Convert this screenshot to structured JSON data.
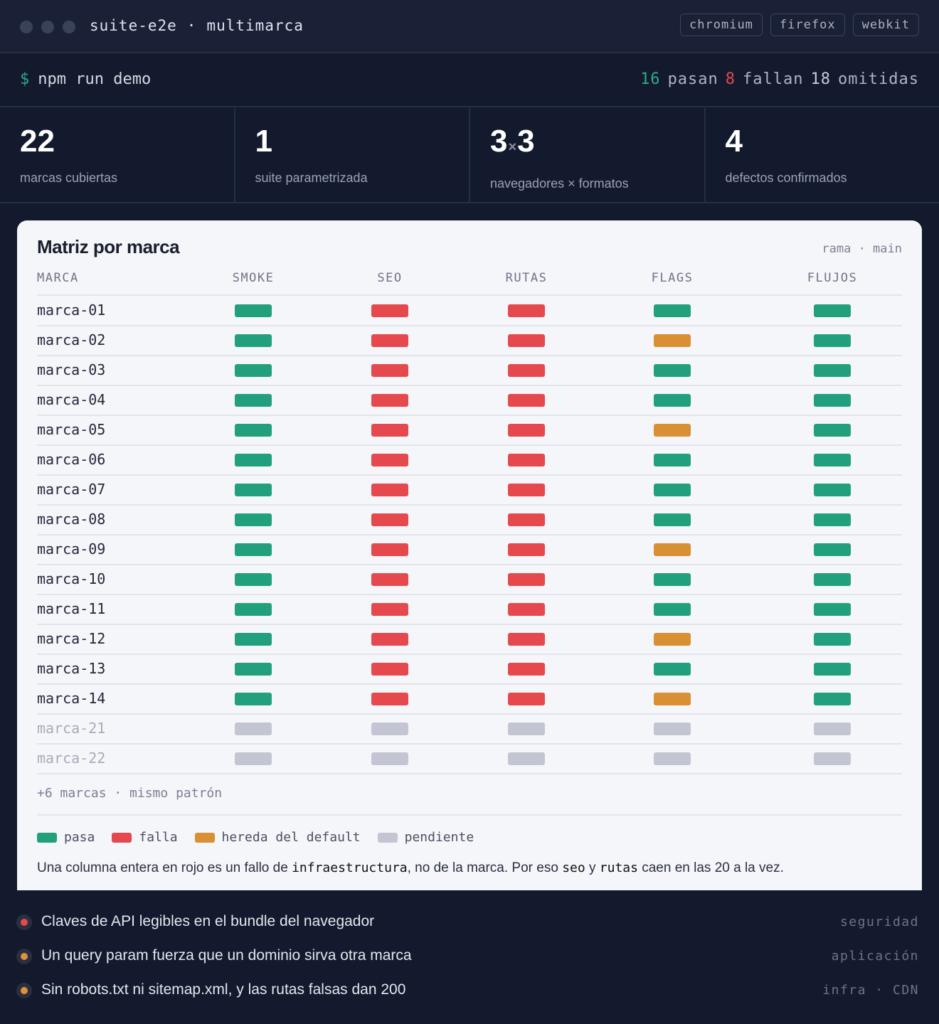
{
  "window": {
    "title": "suite-e2e",
    "separator": "·",
    "subtitle": "multimarca",
    "browsers": [
      "chromium",
      "firefox",
      "webkit"
    ]
  },
  "command": {
    "prompt": "$",
    "text": "npm run demo",
    "stats": [
      {
        "value": 16,
        "label": "pasan",
        "color": "#2fa98a"
      },
      {
        "value": 8,
        "label": "fallan",
        "color": "#e5484d"
      },
      {
        "value": 18,
        "label": "omitidas",
        "color": "#c6cbd8"
      }
    ]
  },
  "kpis": [
    {
      "value": "22",
      "label": "marcas cubiertas"
    },
    {
      "value": "1",
      "label": "suite parametrizada"
    },
    {
      "value": "3",
      "times": "×",
      "value2": "3",
      "label": "navegadores × formatos"
    },
    {
      "value": "4",
      "label": "defectos confirmados"
    }
  ],
  "matrix": {
    "title": "Matriz por marca",
    "branch": "rama · main",
    "columns": [
      "MARCA",
      "SMOKE",
      "SEO",
      "RUTAS",
      "FLAGS",
      "FLUJOS"
    ],
    "rows": [
      {
        "brand": "marca-01",
        "cells": [
          0,
          1,
          1,
          0,
          0
        ]
      },
      {
        "brand": "marca-02",
        "cells": [
          0,
          1,
          1,
          2,
          0
        ]
      },
      {
        "brand": "marca-03",
        "cells": [
          0,
          1,
          1,
          0,
          0
        ]
      },
      {
        "brand": "marca-04",
        "cells": [
          0,
          1,
          1,
          0,
          0
        ]
      },
      {
        "brand": "marca-05",
        "cells": [
          0,
          1,
          1,
          2,
          0
        ]
      },
      {
        "brand": "marca-06",
        "cells": [
          0,
          1,
          1,
          0,
          0
        ]
      },
      {
        "brand": "marca-07",
        "cells": [
          0,
          1,
          1,
          0,
          0
        ]
      },
      {
        "brand": "marca-08",
        "cells": [
          0,
          1,
          1,
          0,
          0
        ]
      },
      {
        "brand": "marca-09",
        "cells": [
          0,
          1,
          1,
          2,
          0
        ]
      },
      {
        "brand": "marca-10",
        "cells": [
          0,
          1,
          1,
          0,
          0
        ]
      },
      {
        "brand": "marca-11",
        "cells": [
          0,
          1,
          1,
          0,
          0
        ]
      },
      {
        "brand": "marca-12",
        "cells": [
          0,
          1,
          1,
          2,
          0
        ]
      },
      {
        "brand": "marca-13",
        "cells": [
          0,
          1,
          1,
          0,
          0
        ]
      },
      {
        "brand": "marca-14",
        "cells": [
          0,
          1,
          1,
          2,
          0
        ]
      },
      {
        "brand": "marca-21",
        "cells": [
          3,
          3,
          3,
          3,
          3
        ]
      },
      {
        "brand": "marca-22",
        "cells": [
          3,
          3,
          3,
          3,
          3
        ]
      }
    ],
    "more": "+6 marcas · mismo patrón",
    "legend": [
      {
        "label": "pasa",
        "color": "#22a07d"
      },
      {
        "label": "falla",
        "color": "#e5484d"
      },
      {
        "label": "hereda del default",
        "color": "#d98f34"
      },
      {
        "label": "pendiente",
        "color": "#c3c6d2"
      }
    ],
    "note": [
      {
        "text": "Una columna entera en rojo es un fallo de "
      },
      {
        "text": "infraestructura",
        "code": true
      },
      {
        "text": ", no de la marca. Por eso "
      },
      {
        "text": "seo",
        "code": true
      },
      {
        "text": " y "
      },
      {
        "text": "rutas",
        "code": true
      },
      {
        "text": " caen en las 20 a la vez."
      }
    ]
  },
  "defects": [
    {
      "text": "Claves de API legibles en el bundle del navegador",
      "tag": "seguridad",
      "color": "#e5484d"
    },
    {
      "text": "Un query param fuerza que un dominio sirva otra marca",
      "tag": "aplicación",
      "color": "#e0913a"
    },
    {
      "text": "Sin robots.txt ni sitemap.xml, y las rutas falsas dan 200",
      "tag": "infra · CDN",
      "color": "#e0913a"
    }
  ]
}
